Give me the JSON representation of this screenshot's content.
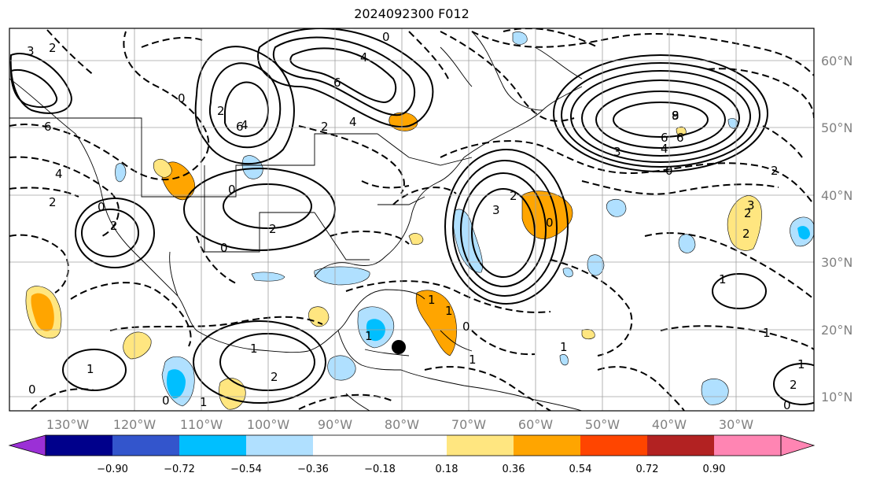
{
  "title": "2024092300 F012",
  "lat_labels": [
    "60°N",
    "50°N",
    "40°N",
    "30°N",
    "20°N",
    "10°N"
  ],
  "lon_labels": [
    "130°W",
    "120°W",
    "110°W",
    "100°W",
    "90°W",
    "80°W",
    "70°W",
    "60°W",
    "50°W",
    "40°W",
    "30°W"
  ],
  "colorbar": {
    "colors": [
      "#9b30d6",
      "#00008b",
      "#3355cc",
      "#00bfff",
      "#b0e0ff",
      "#ffffff",
      "#ffe680",
      "#ffa500",
      "#ff4500",
      "#b22222",
      "#ff85b3"
    ],
    "labels": [
      "−0.90",
      "−0.72",
      "−0.54",
      "−0.36",
      "−0.18",
      "0.18",
      "0.36",
      "0.54",
      "0.72",
      "0.90"
    ]
  },
  "contour_labels": [
    "2",
    "3",
    "6",
    "4",
    "6",
    "6",
    "0",
    "4",
    "2",
    "0",
    "2",
    "4",
    "4",
    "6",
    "0",
    "8",
    "2",
    "0",
    "2",
    "3",
    "9",
    "6",
    "4",
    "3",
    "0",
    "2",
    "0",
    "2",
    "2",
    "0",
    "2",
    "0",
    "1",
    "1",
    "0",
    "1",
    "0",
    "1",
    "2",
    "1",
    "1",
    "1",
    "1",
    "1",
    "1",
    "1",
    "2",
    "2",
    "0",
    "3"
  ],
  "hurricane_marker": "tropical-system-dot"
}
